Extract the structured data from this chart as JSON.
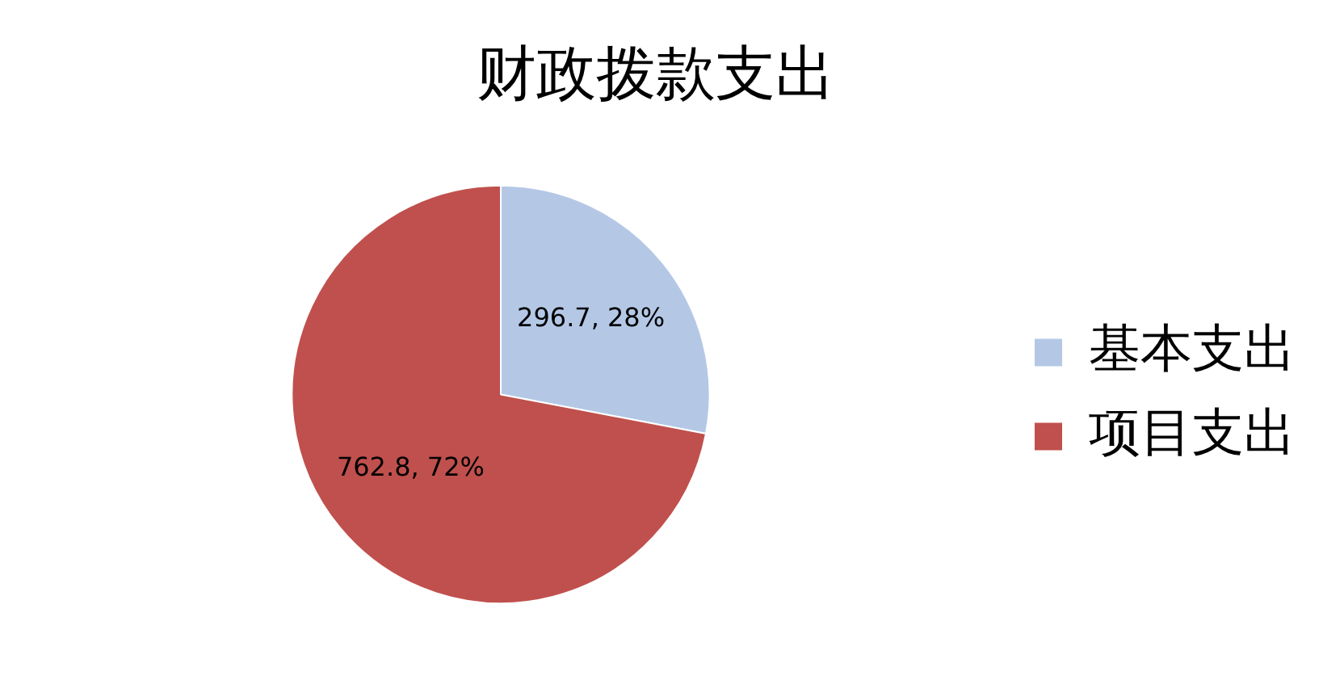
{
  "chart_data": {
    "type": "pie",
    "title": "财政拨款支出",
    "categories": [
      "基本支出",
      "项目支出"
    ],
    "values": [
      296.7,
      762.8
    ],
    "colors": [
      "#b4c8e6",
      "#c0504d"
    ],
    "value_labels": [
      "296.7, 28%",
      "762.8, 72%"
    ],
    "legend": "right"
  }
}
